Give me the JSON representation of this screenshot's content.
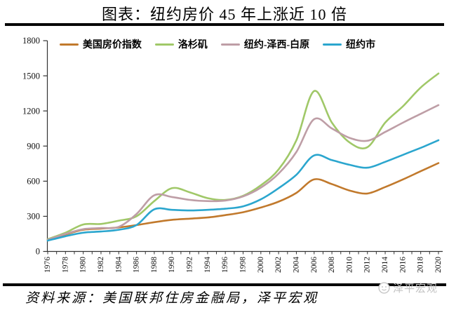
{
  "title": "图表：纽约房价 45 年上涨近 10 倍",
  "source_note": "资料来源：美国联邦住房金融局，泽平宏观",
  "watermark": {
    "label": "泽平宏观",
    "icon": "zeping-macro-logo"
  },
  "colors": {
    "divider": "#070707",
    "axis": "#333333",
    "tick_label": "#111111",
    "watermark": "#c3c3c3"
  },
  "chart_data": {
    "type": "line",
    "title": "图表：纽约房价 45 年上涨近 10 倍",
    "xlabel": "",
    "ylabel": "",
    "ylim": [
      0,
      1800
    ],
    "yticks": [
      0,
      300,
      600,
      900,
      1200,
      1500,
      1800
    ],
    "grid": false,
    "legend_position": "top",
    "x": [
      1976,
      1978,
      1980,
      1982,
      1984,
      1986,
      1988,
      1990,
      1992,
      1994,
      1996,
      1998,
      2000,
      2002,
      2004,
      2006,
      2008,
      2010,
      2012,
      2014,
      2016,
      2018,
      2020
    ],
    "x_tick_labels": [
      "1976",
      "1978",
      "1980",
      "1982",
      "1984",
      "1986",
      "1988",
      "1990",
      "1992",
      "1994",
      "1996",
      "1998",
      "2000",
      "2002",
      "2004",
      "2006",
      "2008",
      "2010",
      "2012",
      "2014",
      "2016",
      "2018",
      "2020"
    ],
    "series": [
      {
        "name": "美国房价指数",
        "color": "#C1792C",
        "values": [
          100,
          145,
          185,
          195,
          205,
          225,
          250,
          270,
          280,
          290,
          310,
          335,
          375,
          425,
          500,
          615,
          575,
          520,
          495,
          550,
          615,
          685,
          755
        ]
      },
      {
        "name": "洛杉矶",
        "color": "#A0C868",
        "values": [
          105,
          160,
          230,
          235,
          263,
          300,
          430,
          540,
          505,
          455,
          440,
          475,
          565,
          700,
          950,
          1370,
          1100,
          930,
          890,
          1100,
          1240,
          1400,
          1520
        ]
      },
      {
        "name": "纽约-泽西-白原",
        "color": "#BE9EA6",
        "values": [
          100,
          150,
          190,
          200,
          210,
          320,
          480,
          465,
          440,
          430,
          435,
          470,
          545,
          665,
          850,
          1130,
          1050,
          970,
          945,
          1020,
          1100,
          1175,
          1250
        ]
      },
      {
        "name": "纽约市",
        "color": "#2BA6CE",
        "values": [
          92,
          130,
          160,
          170,
          185,
          225,
          360,
          355,
          350,
          355,
          365,
          385,
          445,
          540,
          655,
          820,
          780,
          740,
          715,
          765,
          825,
          885,
          950
        ]
      }
    ]
  }
}
